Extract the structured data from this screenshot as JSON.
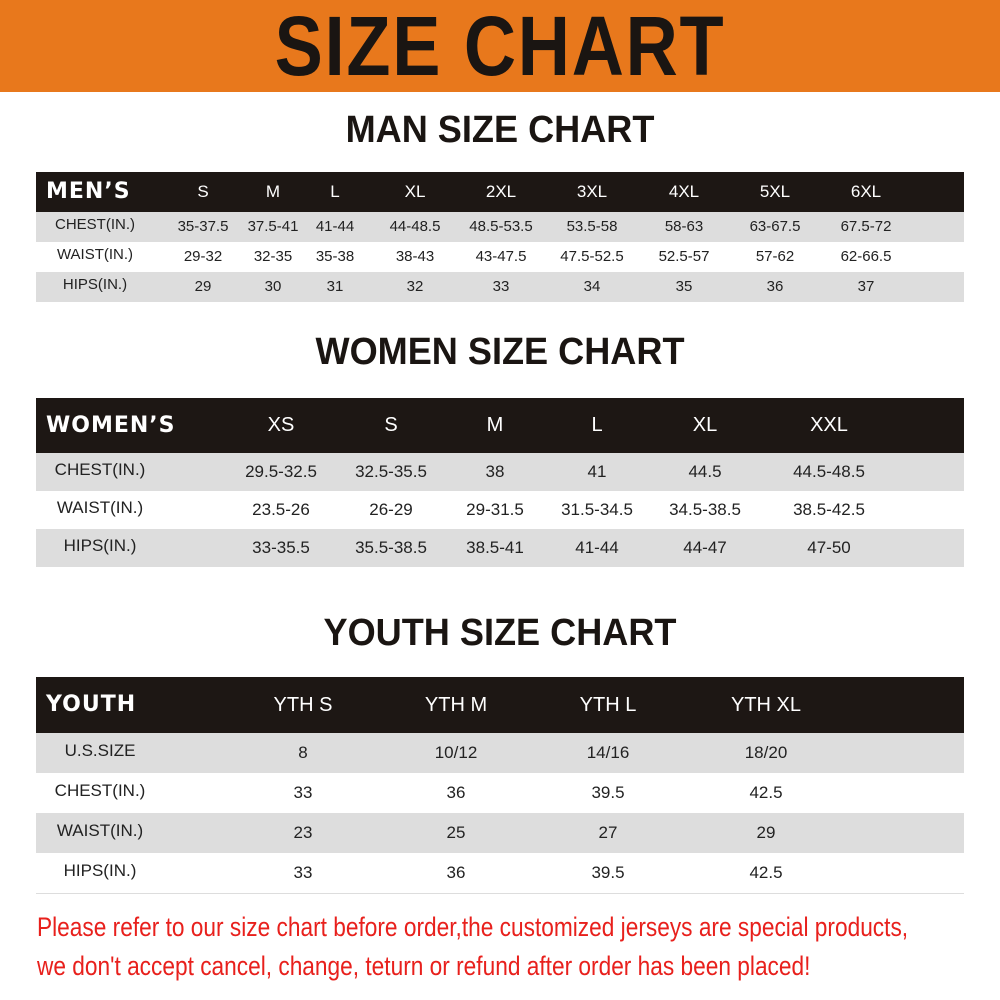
{
  "title": "SIZE CHART",
  "colors": {
    "banner": "#e8781c",
    "header_bg": "#1d1714",
    "row_gray": "#dddddd",
    "note": "#e8201c"
  },
  "men": {
    "heading": "MAN SIZE CHART",
    "header_label": "MEN’S",
    "sizes": [
      "S",
      "M",
      "L",
      "XL",
      "2XL",
      "3XL",
      "4XL",
      "5XL",
      "6XL"
    ],
    "rows": [
      {
        "label": "CHEST(IN.)",
        "values": [
          "35-37.5",
          "37.5-41",
          "41-44",
          "44-48.5",
          "48.5-53.5",
          "53.5-58",
          "58-63",
          "63-67.5",
          "67.5-72"
        ]
      },
      {
        "label": "WAIST(IN.)",
        "values": [
          "29-32",
          "32-35",
          "35-38",
          "38-43",
          "43-47.5",
          "47.5-52.5",
          "52.5-57",
          "57-62",
          "62-66.5"
        ]
      },
      {
        "label": "HIPS(IN.)",
        "values": [
          "29",
          "30",
          "31",
          "32",
          "33",
          "34",
          "35",
          "36",
          "37"
        ]
      }
    ]
  },
  "women": {
    "heading": "WOMEN SIZE CHART",
    "header_label": "WOMEN’S",
    "sizes": [
      "XS",
      "S",
      "M",
      "L",
      "XL",
      "XXL"
    ],
    "rows": [
      {
        "label": "CHEST(IN.)",
        "values": [
          "29.5-32.5",
          "32.5-35.5",
          "38",
          "41",
          "44.5",
          "44.5-48.5"
        ]
      },
      {
        "label": "WAIST(IN.)",
        "values": [
          "23.5-26",
          "26-29",
          "29-31.5",
          "31.5-34.5",
          "34.5-38.5",
          "38.5-42.5"
        ]
      },
      {
        "label": "HIPS(IN.)",
        "values": [
          "33-35.5",
          "35.5-38.5",
          "38.5-41",
          "41-44",
          "44-47",
          "47-50"
        ]
      }
    ]
  },
  "youth": {
    "heading": "YOUTH SIZE CHART",
    "header_label": "YOUTH",
    "sizes": [
      "YTH S",
      "YTH M",
      "YTH L",
      "YTH XL"
    ],
    "rows": [
      {
        "label": "U.S.SIZE",
        "values": [
          "8",
          "10/12",
          "14/16",
          "18/20"
        ]
      },
      {
        "label": "CHEST(IN.)",
        "values": [
          "33",
          "36",
          "39.5",
          "42.5"
        ]
      },
      {
        "label": "WAIST(IN.)",
        "values": [
          "23",
          "25",
          "27",
          "29"
        ]
      },
      {
        "label": "HIPS(IN.)",
        "values": [
          "33",
          "36",
          "39.5",
          "42.5"
        ]
      }
    ]
  },
  "notice": {
    "line1": "Please refer to our size chart before order,the customized jerseys are special products,",
    "line2": "we don't accept cancel, change, teturn or refund after order has been placed!"
  }
}
